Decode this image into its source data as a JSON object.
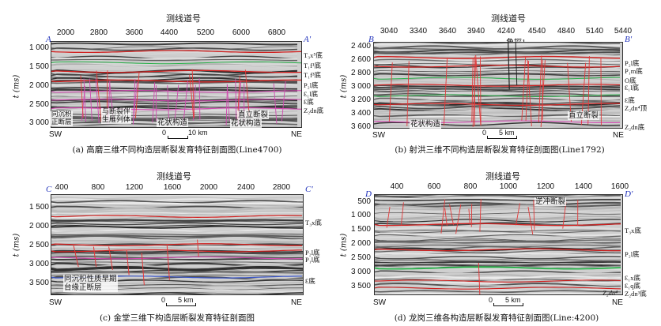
{
  "panels": [
    {
      "id": "a",
      "axis_title": "测线道号",
      "x_ticks": [
        "2000",
        "2800",
        "3600",
        "4400",
        "5200",
        "6000",
        "6800"
      ],
      "y_ticks": [
        "1 000",
        "1 500",
        "2 000",
        "2 500",
        "3 000"
      ],
      "y_label": "t (ms)",
      "corner_left": "A",
      "corner_right": "A'",
      "dir_left": "SW",
      "dir_right": "NE",
      "scale_zero": "0",
      "scale_end": "10 km",
      "horizons": [
        "T₃x⁵底",
        "T₁f¹底",
        "T₁f³底",
        "P₂l底",
        "Ɛ₁l底",
        "Ɛ底",
        "Z₂dn底"
      ],
      "annotations": [
        "同沉积\n正断层",
        "与断裂伴\n生雁列体",
        "花状构造",
        "直立断裂",
        "花状构造"
      ],
      "caption": "(a) 高磨三维不同构造层断裂发育特征剖面图(Line4700)"
    },
    {
      "id": "b",
      "axis_title": "测线道号",
      "x_ticks": [
        "3040",
        "3340",
        "3640",
        "3940",
        "4240",
        "4540",
        "4840",
        "5140",
        "5440"
      ],
      "y_ticks": [
        "2 400",
        "2 600",
        "2 800",
        "3 000",
        "3 200",
        "3 400",
        "3 600"
      ],
      "y_label": "t (ms)",
      "corner_left": "B",
      "corner_right": "B'",
      "dir_left": "SW",
      "dir_right": "NE",
      "scale_zero": "0",
      "scale_end": "5 km",
      "well": "角探1",
      "horizons": [
        "P₂l底",
        "P₁m底",
        "O底",
        "Ɛ₁l底",
        "Ɛ底",
        "Z₂dn⁴顶",
        "Z₂dn底"
      ],
      "annotations": [
        "花状构造",
        "直立断裂"
      ],
      "caption": "(b) 射洪三维不同构造层断裂发育特征剖面图(Line1792)"
    },
    {
      "id": "c",
      "axis_title": "测线道号",
      "x_ticks": [
        "400",
        "800",
        "1200",
        "1600",
        "2000",
        "2400",
        "2800"
      ],
      "y_ticks": [
        "1 500",
        "2 000",
        "2 500",
        "3 000",
        "3 500"
      ],
      "y_label": "t (ms)",
      "corner_left": "C",
      "corner_right": "C'",
      "dir_left": "SW",
      "dir_right": "NE",
      "scale_zero": "0",
      "scale_end": "5 km",
      "horizons": [
        "T₃x底",
        "P₂l底",
        "P₁l底",
        "Ɛ底"
      ],
      "annotations": [
        "同沉积性质早期\n台缘正断层"
      ],
      "caption": "(c) 金堂三维下构造层断裂发育特征剖面图"
    },
    {
      "id": "d",
      "axis_title": "测线道号",
      "x_ticks": [
        "400",
        "600",
        "800",
        "1000",
        "1200",
        "1400",
        "1600"
      ],
      "y_ticks": [
        "500",
        "1 000",
        "1 500",
        "2 000",
        "2 500",
        "3 000",
        "3 500"
      ],
      "y_label": "t (ms)",
      "corner_left": "D",
      "corner_right": "D'",
      "dir_left": "SW",
      "dir_right": "NE",
      "scale_zero": "0",
      "scale_end": "5 km",
      "horizons": [
        "T₃x底",
        "P₂l底",
        "Ɛ₁x底",
        "Ɛ₁q底",
        "Z₂dn³底"
      ],
      "inner_label": "Z₂dn⁴",
      "annotations": [
        "逆冲断裂"
      ],
      "caption": "(d) 龙岗三维各构造层断裂发育特征剖面图(Line:4200)"
    }
  ],
  "colors": {
    "corner": "#2233bb",
    "fault": "#e23a3a",
    "horizon_red": "#d0201f",
    "horizon_pink": "#d04ab0",
    "horizon_green": "#27b048"
  }
}
